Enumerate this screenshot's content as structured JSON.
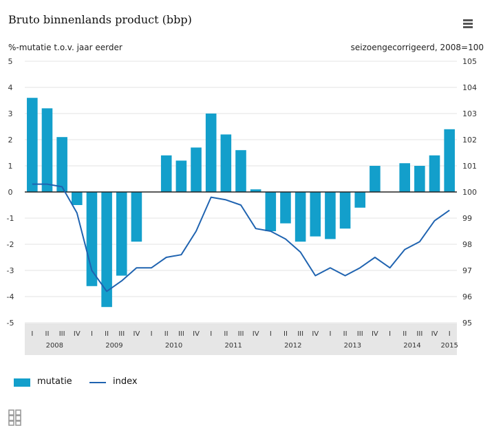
{
  "header": {
    "title": "Bruto binnenlands product (bbp)",
    "menu_icon": "hamburger-menu-icon"
  },
  "axis_labels": {
    "left": "%-mutatie t.o.v. jaar eerder",
    "right": "seizoengecorrigeerd, 2008=100"
  },
  "legend": {
    "bar_label": "mutatie",
    "line_label": "index"
  },
  "logo_icon": "cbs-logo-icon",
  "colors": {
    "bar": "#139fcb",
    "line": "#1f63b0",
    "axis_band": "#e6e6e6",
    "grid": "#e3e3e3",
    "zero_line": "#222222"
  },
  "chart_data": {
    "type": "bar",
    "title": "Bruto binnenlands product (bbp)",
    "quarter_labels": [
      "I",
      "II",
      "III",
      "IV",
      "I",
      "II",
      "III",
      "IV",
      "I",
      "II",
      "III",
      "IV",
      "I",
      "II",
      "III",
      "IV",
      "I",
      "II",
      "III",
      "IV",
      "I",
      "II",
      "III",
      "IV",
      "I",
      "II",
      "III",
      "IV",
      "I"
    ],
    "year_labels": [
      {
        "label": "2008",
        "quarter_index": 1.5
      },
      {
        "label": "2009",
        "quarter_index": 5.5
      },
      {
        "label": "2010",
        "quarter_index": 9.5
      },
      {
        "label": "2011",
        "quarter_index": 13.5
      },
      {
        "label": "2012",
        "quarter_index": 17.5
      },
      {
        "label": "2013",
        "quarter_index": 21.5
      },
      {
        "label": "2014",
        "quarter_index": 25.5
      },
      {
        "label": "2015",
        "quarter_index": 28
      }
    ],
    "series": [
      {
        "name": "mutatie",
        "type": "bar",
        "axis": "left",
        "values": [
          3.6,
          3.2,
          2.1,
          -0.5,
          -3.6,
          -4.4,
          -3.2,
          -1.9,
          0,
          1.4,
          1.2,
          1.7,
          3.0,
          2.2,
          1.6,
          0.1,
          -1.5,
          -1.2,
          -1.9,
          -1.7,
          -1.8,
          -1.4,
          -0.6,
          1.0,
          0,
          1.1,
          1.0,
          1.4,
          2.4
        ]
      },
      {
        "name": "index",
        "type": "line",
        "axis": "right",
        "values": [
          100.3,
          100.3,
          100.2,
          99.2,
          97.0,
          96.2,
          96.6,
          97.1,
          97.1,
          97.5,
          97.6,
          98.5,
          99.8,
          99.7,
          99.5,
          98.6,
          98.5,
          98.2,
          97.7,
          96.8,
          97.1,
          96.8,
          97.1,
          97.5,
          97.1,
          97.8,
          98.1,
          98.9,
          99.3
        ]
      }
    ],
    "y_left": {
      "ticks": [
        5,
        4,
        3,
        2,
        1,
        0,
        -1,
        -2,
        -3,
        -4,
        -5
      ],
      "ylim": [
        -5,
        5
      ]
    },
    "y_right": {
      "ticks": [
        105,
        104,
        103,
        102,
        101,
        100,
        99,
        98,
        97,
        96,
        95
      ],
      "ylim": [
        95,
        105
      ]
    },
    "grid": true,
    "legend_position": "bottom-left"
  }
}
